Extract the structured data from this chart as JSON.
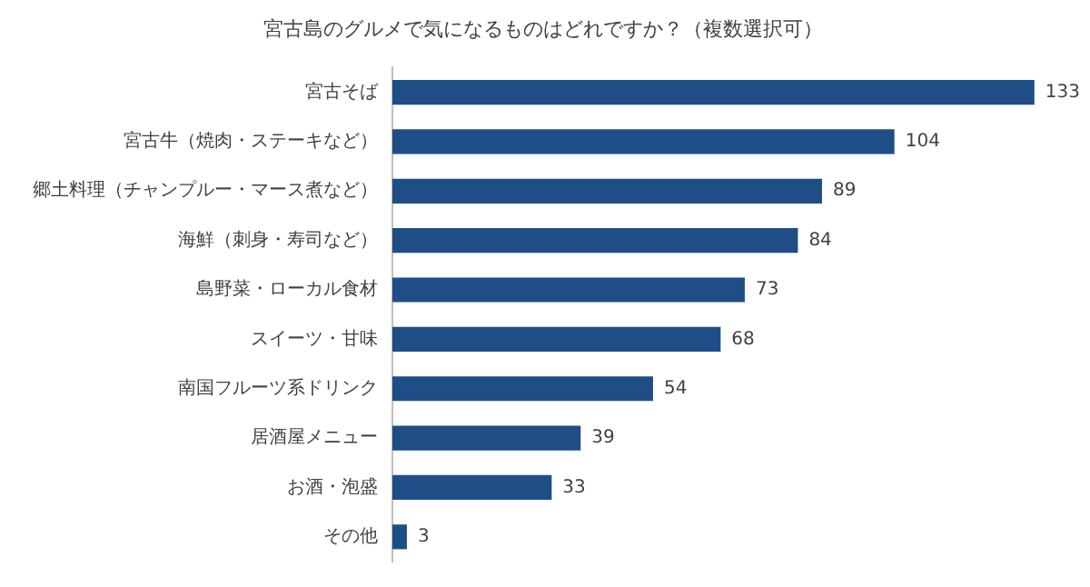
{
  "chart_data": {
    "type": "bar",
    "orientation": "horizontal",
    "title": "宮古島のグルメで気になるものはどれですか？（複数選択可）",
    "categories": [
      "宮古そば",
      "宮古牛（焼肉・ステーキなど）",
      "郷土料理（チャンプルー・マース煮など）",
      "海鮮（刺身・寿司など）",
      "島野菜・ローカル食材",
      "スイーツ・甘味",
      "南国フルーツ系ドリンク",
      "居酒屋メニュー",
      "お酒・泡盛",
      "その他"
    ],
    "values": [
      133,
      104,
      89,
      84,
      73,
      68,
      54,
      39,
      33,
      3
    ],
    "color": "#1f4e87",
    "data_labels": true,
    "grid": false,
    "legend": false
  }
}
